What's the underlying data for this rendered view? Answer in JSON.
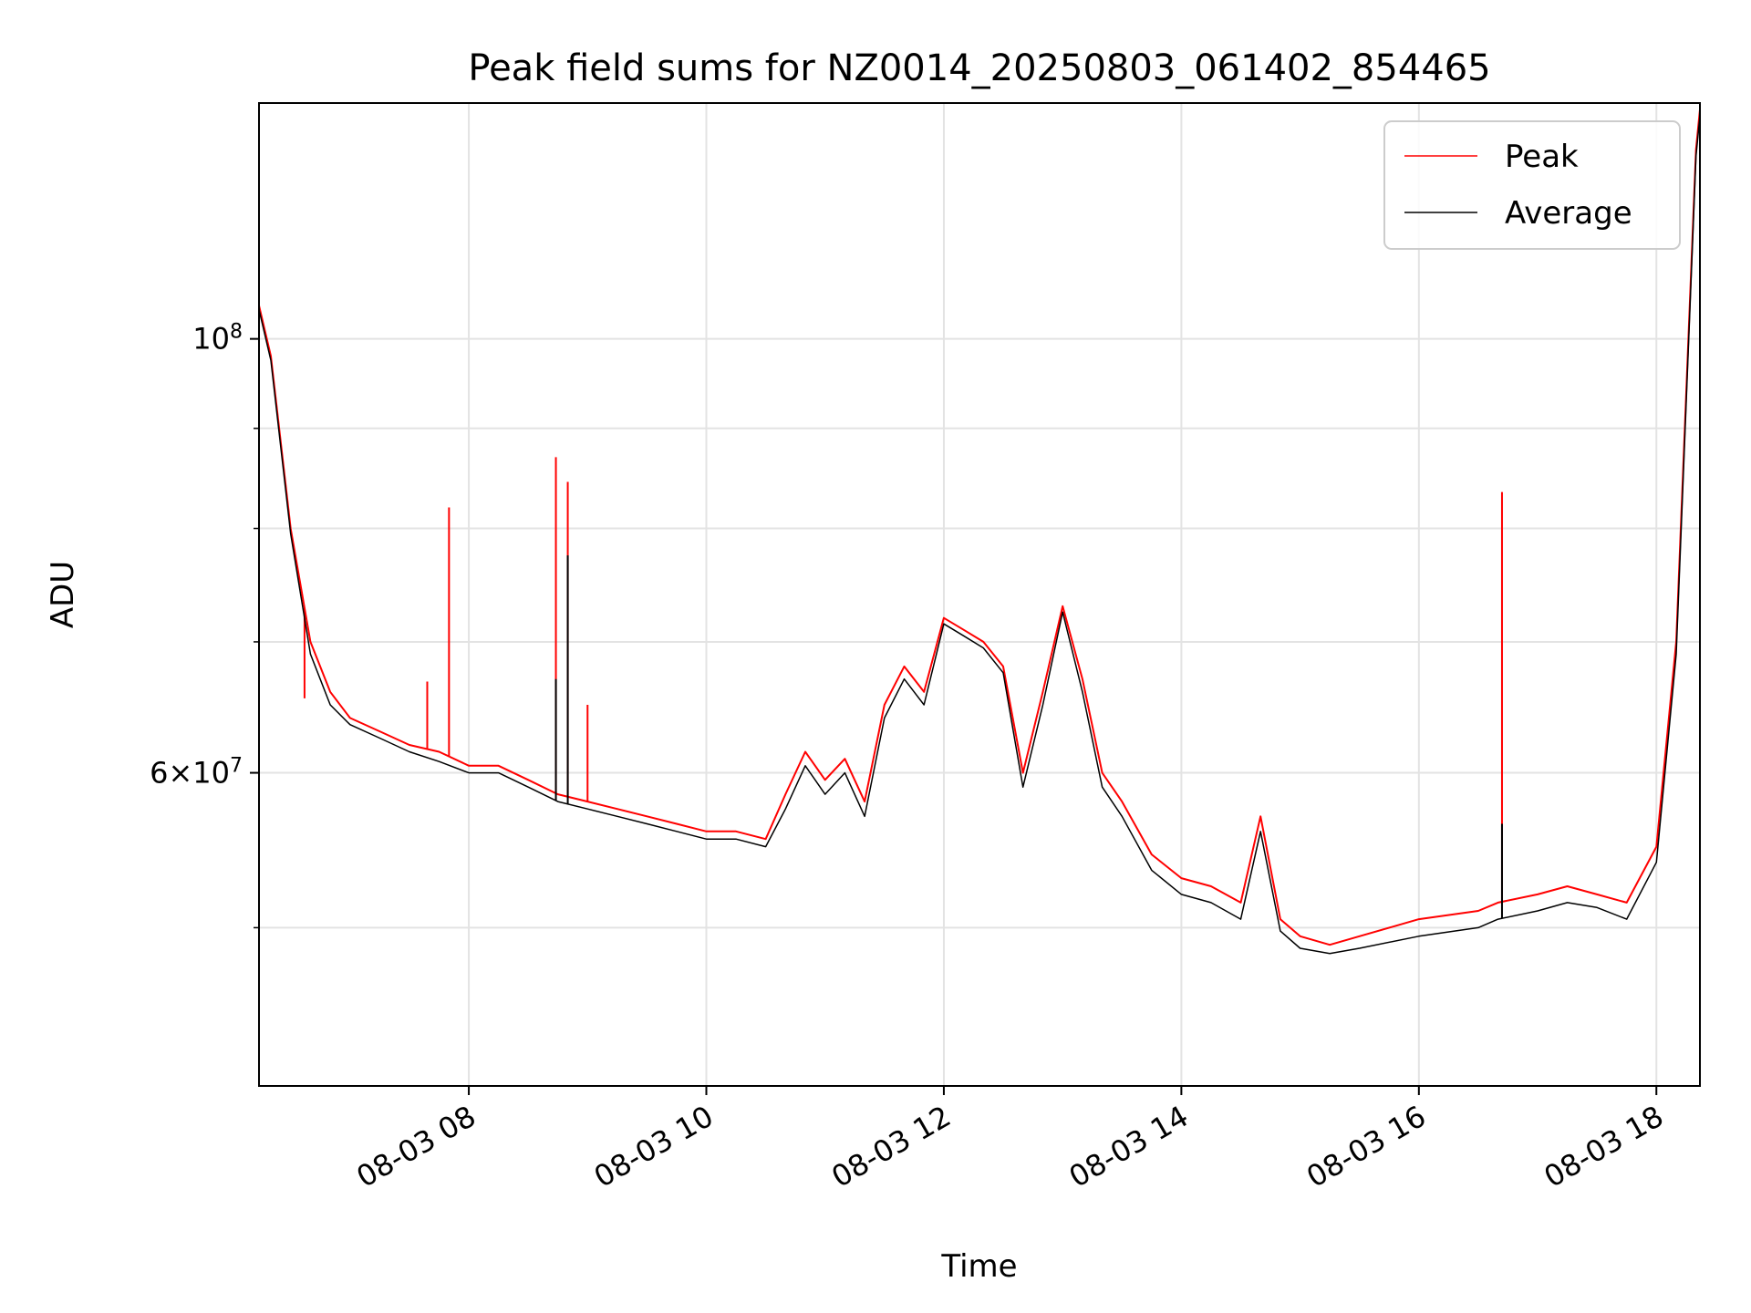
{
  "chart_data": {
    "type": "line",
    "title": "Peak field sums for NZ0014_20250803_061402_854465",
    "xlabel": "Time",
    "ylabel": "ADU",
    "yscale": "log",
    "grid": true,
    "legend_position": "top-right",
    "xlim": [
      "2025-08-03 06:14",
      "2025-08-03 18:22"
    ],
    "ylim": [
      41500000,
      132000000
    ],
    "x_ticks": [
      {
        "value": "2025-08-03 08:00",
        "label": "08-03 08"
      },
      {
        "value": "2025-08-03 10:00",
        "label": "08-03 10"
      },
      {
        "value": "2025-08-03 12:00",
        "label": "08-03 12"
      },
      {
        "value": "2025-08-03 14:00",
        "label": "08-03 14"
      },
      {
        "value": "2025-08-03 16:00",
        "label": "08-03 16"
      },
      {
        "value": "2025-08-03 18:00",
        "label": "08-03 18"
      }
    ],
    "y_major_ticks": [
      {
        "value": 60000000,
        "label_base": "6",
        "label_times": "×",
        "label_pow": "10",
        "label_exp": "7"
      },
      {
        "value": 100000000,
        "label_base": "",
        "label_times": "",
        "label_pow": "10",
        "label_exp": "8"
      }
    ],
    "y_minor_ticks": [
      50000000,
      70000000,
      80000000,
      90000000
    ],
    "series": [
      {
        "name": "Peak",
        "color": "#ff0000",
        "x": [
          "2025-08-03 06:14",
          "2025-08-03 06:20",
          "2025-08-03 06:30",
          "2025-08-03 06:40",
          "2025-08-03 06:50",
          "2025-08-03 07:00",
          "2025-08-03 07:15",
          "2025-08-03 07:30",
          "2025-08-03 07:45",
          "2025-08-03 08:00",
          "2025-08-03 08:15",
          "2025-08-03 08:30",
          "2025-08-03 08:45",
          "2025-08-03 09:00",
          "2025-08-03 09:15",
          "2025-08-03 09:30",
          "2025-08-03 09:45",
          "2025-08-03 10:00",
          "2025-08-03 10:15",
          "2025-08-03 10:30",
          "2025-08-03 10:40",
          "2025-08-03 10:50",
          "2025-08-03 11:00",
          "2025-08-03 11:10",
          "2025-08-03 11:20",
          "2025-08-03 11:30",
          "2025-08-03 11:40",
          "2025-08-03 11:50",
          "2025-08-03 12:00",
          "2025-08-03 12:10",
          "2025-08-03 12:20",
          "2025-08-03 12:30",
          "2025-08-03 12:40",
          "2025-08-03 12:50",
          "2025-08-03 13:00",
          "2025-08-03 13:10",
          "2025-08-03 13:20",
          "2025-08-03 13:30",
          "2025-08-03 13:45",
          "2025-08-03 14:00",
          "2025-08-03 14:15",
          "2025-08-03 14:30",
          "2025-08-03 14:40",
          "2025-08-03 14:50",
          "2025-08-03 15:00",
          "2025-08-03 15:15",
          "2025-08-03 15:30",
          "2025-08-03 16:00",
          "2025-08-03 16:30",
          "2025-08-03 16:40",
          "2025-08-03 17:00",
          "2025-08-03 17:15",
          "2025-08-03 17:30",
          "2025-08-03 17:45",
          "2025-08-03 18:00",
          "2025-08-03 18:10",
          "2025-08-03 18:20",
          "2025-08-03 18:22"
        ],
        "y": [
          104000000,
          98000000,
          80000000,
          70000000,
          66000000,
          64000000,
          63000000,
          62000000,
          61500000,
          60500000,
          60500000,
          59500000,
          58500000,
          58000000,
          57500000,
          57000000,
          56500000,
          56000000,
          56000000,
          55500000,
          58500000,
          61500000,
          59500000,
          61000000,
          58000000,
          65000000,
          68000000,
          66000000,
          72000000,
          71000000,
          70000000,
          68000000,
          60000000,
          66000000,
          73000000,
          67000000,
          60000000,
          58000000,
          54500000,
          53000000,
          52500000,
          51500000,
          57000000,
          50500000,
          49500000,
          49000000,
          49500000,
          50500000,
          51000000,
          51500000,
          52000000,
          52500000,
          52000000,
          51500000,
          55000000,
          70000000,
          125000000,
          131000000
        ],
        "spikes": [
          {
            "x": "2025-08-03 06:37",
            "y": 65500000
          },
          {
            "x": "2025-08-03 07:50",
            "y": 82000000
          },
          {
            "x": "2025-08-03 07:39",
            "y": 66800000
          },
          {
            "x": "2025-08-03 08:44",
            "y": 87000000
          },
          {
            "x": "2025-08-03 08:50",
            "y": 84500000
          },
          {
            "x": "2025-08-03 09:00",
            "y": 65000000
          },
          {
            "x": "2025-08-03 16:42",
            "y": 83500000
          }
        ]
      },
      {
        "name": "Average",
        "color": "#000000",
        "x": [
          "2025-08-03 06:14",
          "2025-08-03 06:20",
          "2025-08-03 06:30",
          "2025-08-03 06:40",
          "2025-08-03 06:50",
          "2025-08-03 07:00",
          "2025-08-03 07:15",
          "2025-08-03 07:30",
          "2025-08-03 07:45",
          "2025-08-03 08:00",
          "2025-08-03 08:15",
          "2025-08-03 08:30",
          "2025-08-03 08:45",
          "2025-08-03 09:00",
          "2025-08-03 09:15",
          "2025-08-03 09:30",
          "2025-08-03 09:45",
          "2025-08-03 10:00",
          "2025-08-03 10:15",
          "2025-08-03 10:30",
          "2025-08-03 10:40",
          "2025-08-03 10:50",
          "2025-08-03 11:00",
          "2025-08-03 11:10",
          "2025-08-03 11:20",
          "2025-08-03 11:30",
          "2025-08-03 11:40",
          "2025-08-03 11:50",
          "2025-08-03 12:00",
          "2025-08-03 12:10",
          "2025-08-03 12:20",
          "2025-08-03 12:30",
          "2025-08-03 12:40",
          "2025-08-03 12:50",
          "2025-08-03 13:00",
          "2025-08-03 13:10",
          "2025-08-03 13:20",
          "2025-08-03 13:30",
          "2025-08-03 13:45",
          "2025-08-03 14:00",
          "2025-08-03 14:15",
          "2025-08-03 14:30",
          "2025-08-03 14:40",
          "2025-08-03 14:50",
          "2025-08-03 15:00",
          "2025-08-03 15:15",
          "2025-08-03 15:30",
          "2025-08-03 16:00",
          "2025-08-03 16:30",
          "2025-08-03 16:40",
          "2025-08-03 17:00",
          "2025-08-03 17:15",
          "2025-08-03 17:30",
          "2025-08-03 17:45",
          "2025-08-03 18:00",
          "2025-08-03 18:10",
          "2025-08-03 18:20",
          "2025-08-03 18:22"
        ],
        "y": [
          103500000,
          97500000,
          79500000,
          69000000,
          65000000,
          63500000,
          62500000,
          61500000,
          60800000,
          60000000,
          60000000,
          59000000,
          58000000,
          57500000,
          57000000,
          56500000,
          56000000,
          55500000,
          55500000,
          55000000,
          57500000,
          60500000,
          58500000,
          60000000,
          57000000,
          64000000,
          67000000,
          65000000,
          71500000,
          70500000,
          69500000,
          67500000,
          59000000,
          65000000,
          72500000,
          66000000,
          59000000,
          57000000,
          53500000,
          52000000,
          51500000,
          50500000,
          56000000,
          49800000,
          48800000,
          48500000,
          48800000,
          49500000,
          50000000,
          50500000,
          51000000,
          51500000,
          51200000,
          50500000,
          54000000,
          69000000,
          124000000,
          130000000
        ],
        "spikes": [
          {
            "x": "2025-08-03 08:44",
            "y": 67000000
          },
          {
            "x": "2025-08-03 08:50",
            "y": 77500000
          },
          {
            "x": "2025-08-03 16:42",
            "y": 56500000
          }
        ]
      }
    ]
  }
}
